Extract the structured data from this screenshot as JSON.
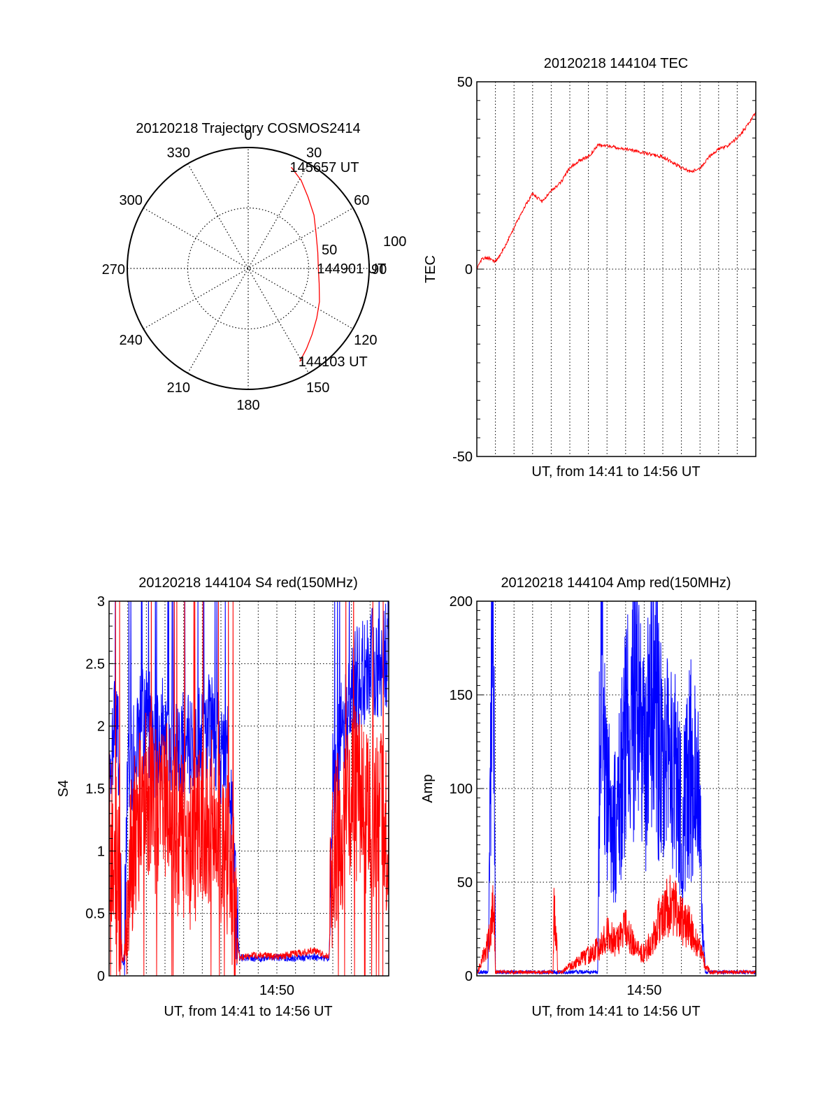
{
  "colors": {
    "red": "#ff0000",
    "blue": "#0000ff",
    "axis": "#000000",
    "grid": "#000000"
  },
  "chart_data": [
    {
      "id": "trajectory",
      "type": "polar",
      "title": "20120218 Trajectory COSMOS2414",
      "angle_labels": [
        "0",
        "30",
        "60",
        "90",
        "120",
        "150",
        "180",
        "210",
        "240",
        "270",
        "300",
        "330"
      ],
      "radial_labels": [
        "50",
        "100"
      ],
      "radial_max": 100,
      "grid": true,
      "series": [
        {
          "color": "red",
          "points": [
            {
              "az": 151,
              "zen": 88
            },
            {
              "az": 144,
              "zen": 82
            },
            {
              "az": 136,
              "zen": 76
            },
            {
              "az": 126,
              "zen": 70
            },
            {
              "az": 115,
              "zen": 65
            },
            {
              "az": 102,
              "zen": 60
            },
            {
              "az": 90,
              "zen": 58
            },
            {
              "az": 77,
              "zen": 59
            },
            {
              "az": 63,
              "zen": 63
            },
            {
              "az": 51,
              "zen": 70
            },
            {
              "az": 40,
              "zen": 77
            },
            {
              "az": 31,
              "zen": 85
            },
            {
              "az": 23,
              "zen": 91
            }
          ]
        }
      ],
      "annotations": [
        {
          "text": "145657 UT",
          "az": 23,
          "zen": 91
        },
        {
          "text": "144901 UT",
          "az": 90,
          "zen": 58
        },
        {
          "text": "144103 UT",
          "az": 151,
          "zen": 88
        }
      ]
    },
    {
      "id": "tec",
      "type": "line",
      "title": "20120218 144104 TEC",
      "xlabel": "UT, from 14:41 to 14:56 UT",
      "ylabel": "TEC",
      "xlim": [
        0,
        15
      ],
      "ylim": [
        -50,
        50
      ],
      "yticks": [
        "-50",
        "0",
        "50"
      ],
      "grid": true,
      "series": [
        {
          "color": "red",
          "x": [
            0,
            0.3,
            0.6,
            1.0,
            1.4,
            2.0,
            2.6,
            3.0,
            3.5,
            4.0,
            4.5,
            5.0,
            5.5,
            6.0,
            6.5,
            7.0,
            8.0,
            9.0,
            10.0,
            11.0,
            11.5,
            12.0,
            12.5,
            13.0,
            13.5,
            14.0,
            14.5,
            15.0
          ],
          "y": [
            0,
            3,
            3,
            2,
            5,
            11,
            17,
            20,
            18,
            21,
            23,
            27,
            29,
            30,
            33,
            33,
            32,
            31,
            30,
            27,
            26,
            27,
            30,
            32,
            33,
            35,
            38,
            42
          ]
        }
      ]
    },
    {
      "id": "s4",
      "type": "line",
      "title": "20120218 144104 S4 red(150MHz)",
      "xlabel": "UT, from 14:41 to 14:56 UT",
      "ylabel": "S4",
      "xlim": [
        0,
        15
      ],
      "ylim": [
        0,
        3
      ],
      "yticks": [
        "0",
        "0.5",
        "1",
        "1.5",
        "2",
        "2.5",
        "3"
      ],
      "xticks": [
        {
          "x": 9,
          "label": "14:50"
        }
      ],
      "grid": true,
      "series": [
        {
          "color": "blue",
          "x": [
            0,
            0.3,
            0.5,
            0.7,
            0.8,
            1.0,
            1.5,
            2.0,
            2.5,
            3.0,
            3.5,
            4.0,
            4.5,
            5.0,
            5.5,
            6.0,
            6.5,
            6.8,
            7.0,
            8.0,
            9.0,
            10.0,
            11.0,
            11.8,
            12.0,
            12.5,
            13.0,
            13.5,
            14.0,
            14.5,
            15.0
          ],
          "y": [
            1.5,
            2.0,
            1.8,
            0.12,
            0.1,
            1.6,
            1.9,
            2.1,
            1.8,
            2.0,
            1.7,
            1.9,
            1.8,
            1.9,
            2.0,
            1.8,
            1.7,
            0.5,
            0.15,
            0.14,
            0.15,
            0.14,
            0.15,
            0.13,
            1.5,
            2.0,
            2.3,
            2.4,
            2.5,
            2.5,
            2.6
          ]
        },
        {
          "color": "red",
          "x": [
            0,
            0.3,
            0.5,
            0.7,
            0.8,
            1.0,
            1.5,
            2.0,
            2.5,
            3.0,
            3.5,
            4.0,
            4.5,
            5.0,
            5.5,
            6.0,
            6.5,
            6.8,
            7.0,
            8.0,
            9.0,
            10.0,
            11.0,
            11.8,
            12.0,
            12.5,
            13.0,
            13.5,
            14.0,
            14.5,
            15.0
          ],
          "y": [
            1.2,
            1.0,
            0.8,
            0.12,
            0.15,
            0.8,
            1.2,
            1.5,
            1.3,
            1.4,
            1.2,
            1.1,
            1.0,
            1.2,
            1.3,
            1.1,
            0.9,
            0.4,
            0.14,
            0.17,
            0.15,
            0.18,
            0.2,
            0.15,
            1.0,
            1.2,
            1.5,
            1.4,
            1.2,
            1.3,
            1.1
          ]
        }
      ]
    },
    {
      "id": "amp",
      "type": "line",
      "title": "20120218 144104 Amp red(150MHz)",
      "xlabel": "UT, from 14:41 to 14:56 UT",
      "ylabel": "Amp",
      "xlim": [
        0,
        15
      ],
      "ylim": [
        0,
        200
      ],
      "yticks": [
        "0",
        "50",
        "100",
        "150",
        "200"
      ],
      "xticks": [
        {
          "x": 9,
          "label": "14:50"
        }
      ],
      "grid": true,
      "series": [
        {
          "color": "blue",
          "x": [
            0,
            0.6,
            0.8,
            0.85,
            0.95,
            1.0,
            4.3,
            6.5,
            6.6,
            6.7,
            7.0,
            7.5,
            8.0,
            8.5,
            9.0,
            9.5,
            10.0,
            10.5,
            11.0,
            11.5,
            12.0,
            12.1,
            12.3,
            15.0
          ],
          "y": [
            1,
            1,
            150,
            165,
            110,
            1,
            1,
            1,
            120,
            180,
            100,
            80,
            120,
            150,
            110,
            170,
            100,
            120,
            80,
            110,
            90,
            30,
            1,
            1
          ]
        },
        {
          "color": "red",
          "x": [
            0,
            0.7,
            0.85,
            0.95,
            1.0,
            4.1,
            4.15,
            4.3,
            4.35,
            6.6,
            7.0,
            7.5,
            8.0,
            8.5,
            9.0,
            9.5,
            10.0,
            10.5,
            11.0,
            11.5,
            12.0,
            12.3,
            12.6,
            15.0
          ],
          "y": [
            1,
            20,
            35,
            30,
            1,
            1,
            35,
            20,
            1,
            15,
            22,
            18,
            25,
            15,
            12,
            20,
            35,
            38,
            30,
            25,
            15,
            5,
            2,
            1
          ]
        }
      ]
    }
  ]
}
